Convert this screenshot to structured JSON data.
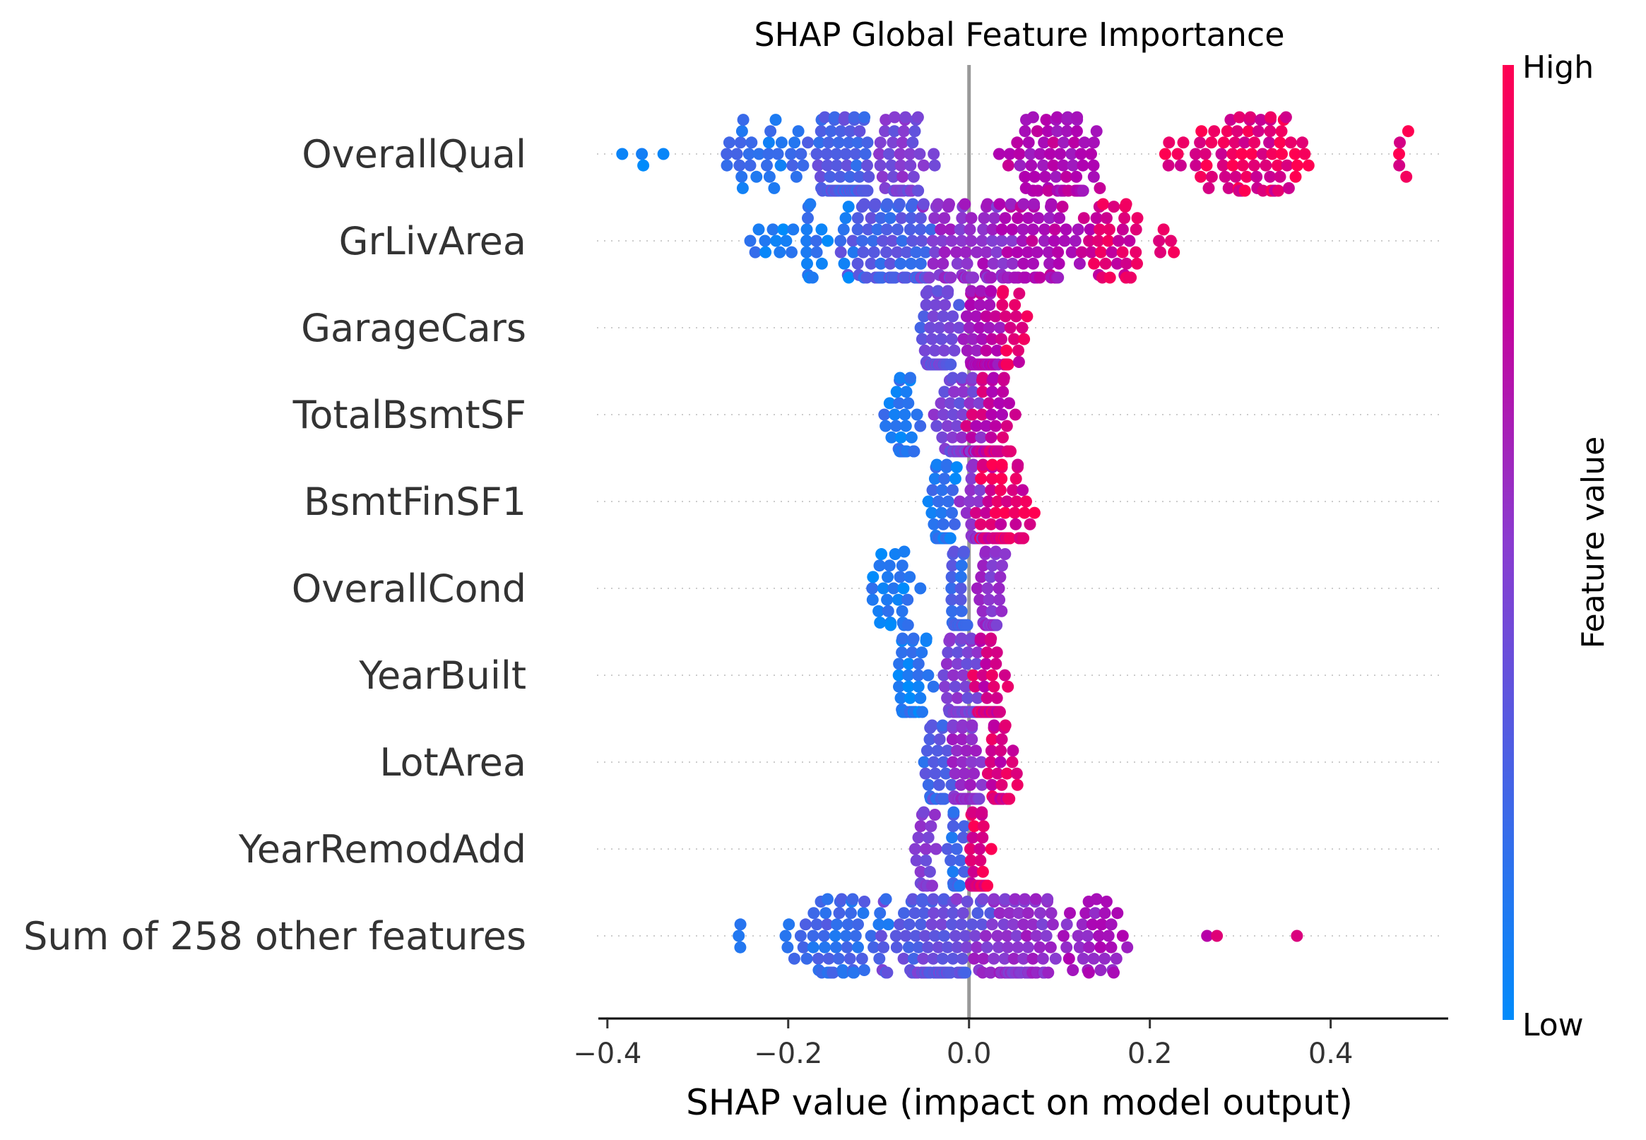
{
  "chart_data": {
    "type": "scatter",
    "subtype": "beeswarm",
    "title": "SHAP Global Feature Importance",
    "xlabel": "SHAP value (impact on model output)",
    "xlim": [
      -0.41,
      0.53
    ],
    "xticks": [
      -0.4,
      -0.2,
      0.0,
      0.2,
      0.4
    ],
    "xtick_labels": [
      "−0.4",
      "−0.2",
      "0.0",
      "0.2",
      "0.4"
    ],
    "zero_line": 0.0,
    "grid": false,
    "colorbar": {
      "label": "Feature value",
      "high_label": "High",
      "low_label": "Low",
      "low_color": "#008bfb",
      "high_color": "#ff0051",
      "mid_color": "#b000b0"
    },
    "features": [
      {
        "name": "OverallQual",
        "clusters": [
          {
            "center": -0.37,
            "spread": 0.02,
            "n": 4,
            "val": 0.02
          },
          {
            "center": -0.23,
            "spread": 0.045,
            "n": 32,
            "val": 0.15
          },
          {
            "center": -0.135,
            "spread": 0.028,
            "n": 95,
            "val": 0.28
          },
          {
            "center": -0.075,
            "spread": 0.025,
            "n": 55,
            "val": 0.45
          },
          {
            "center": 0.1,
            "spread": 0.045,
            "n": 70,
            "val": 0.72
          },
          {
            "center": 0.31,
            "spread": 0.06,
            "n": 80,
            "val": 0.92
          },
          {
            "center": 0.475,
            "spread": 0.012,
            "n": 5,
            "val": 0.97
          }
        ]
      },
      {
        "name": "GrLivArea",
        "clusters": [
          {
            "center": -0.17,
            "spread": 0.045,
            "n": 35,
            "val": 0.1
          },
          {
            "center": -0.085,
            "spread": 0.045,
            "n": 95,
            "val": 0.28
          },
          {
            "center": 0.0,
            "spread": 0.045,
            "n": 80,
            "val": 0.55
          },
          {
            "center": 0.07,
            "spread": 0.04,
            "n": 75,
            "val": 0.72
          },
          {
            "center": 0.16,
            "spread": 0.04,
            "n": 40,
            "val": 0.88
          },
          {
            "center": 0.22,
            "spread": 0.012,
            "n": 4,
            "val": 0.97
          }
        ]
      },
      {
        "name": "GarageCars",
        "clusters": [
          {
            "center": -0.035,
            "spread": 0.015,
            "n": 70,
            "val": 0.35
          },
          {
            "center": 0.015,
            "spread": 0.016,
            "n": 95,
            "val": 0.72
          },
          {
            "center": 0.045,
            "spread": 0.012,
            "n": 20,
            "val": 0.88
          }
        ]
      },
      {
        "name": "TotalBsmtSF",
        "clusters": [
          {
            "center": -0.075,
            "spread": 0.015,
            "n": 35,
            "val": 0.12
          },
          {
            "center": -0.01,
            "spread": 0.018,
            "n": 70,
            "val": 0.45
          },
          {
            "center": 0.025,
            "spread": 0.02,
            "n": 75,
            "val": 0.82
          }
        ]
      },
      {
        "name": "BsmtFinSF1",
        "clusters": [
          {
            "center": -0.03,
            "spread": 0.012,
            "n": 45,
            "val": 0.12
          },
          {
            "center": 0.005,
            "spread": 0.01,
            "n": 25,
            "val": 0.55
          },
          {
            "center": 0.04,
            "spread": 0.022,
            "n": 95,
            "val": 0.9
          }
        ]
      },
      {
        "name": "OverallCond",
        "clusters": [
          {
            "center": -0.085,
            "spread": 0.028,
            "n": 28,
            "val": 0.08
          },
          {
            "center": -0.01,
            "spread": 0.008,
            "n": 110,
            "val": 0.25
          },
          {
            "center": 0.025,
            "spread": 0.012,
            "n": 50,
            "val": 0.55
          }
        ]
      },
      {
        "name": "YearBuilt",
        "clusters": [
          {
            "center": -0.06,
            "spread": 0.018,
            "n": 40,
            "val": 0.1
          },
          {
            "center": -0.005,
            "spread": 0.018,
            "n": 60,
            "val": 0.45
          },
          {
            "center": 0.025,
            "spread": 0.015,
            "n": 70,
            "val": 0.85
          }
        ]
      },
      {
        "name": "LotArea",
        "clusters": [
          {
            "center": -0.035,
            "spread": 0.012,
            "n": 30,
            "val": 0.25
          },
          {
            "center": -0.003,
            "spread": 0.012,
            "n": 110,
            "val": 0.55
          },
          {
            "center": 0.035,
            "spread": 0.015,
            "n": 40,
            "val": 0.85
          }
        ]
      },
      {
        "name": "YearRemodAdd",
        "clusters": [
          {
            "center": -0.045,
            "spread": 0.01,
            "n": 20,
            "val": 0.45
          },
          {
            "center": -0.015,
            "spread": 0.006,
            "n": 40,
            "val": 0.2
          },
          {
            "center": 0.012,
            "spread": 0.008,
            "n": 85,
            "val": 0.9
          }
        ]
      },
      {
        "name": "Sum of 258 other features",
        "clusters": [
          {
            "center": -0.255,
            "spread": 0.005,
            "n": 3,
            "val": 0.05
          },
          {
            "center": -0.14,
            "spread": 0.05,
            "n": 70,
            "val": 0.2
          },
          {
            "center": -0.04,
            "spread": 0.04,
            "n": 140,
            "val": 0.35
          },
          {
            "center": 0.05,
            "spread": 0.04,
            "n": 110,
            "val": 0.55
          },
          {
            "center": 0.14,
            "spread": 0.03,
            "n": 35,
            "val": 0.65
          },
          {
            "center": 0.27,
            "spread": 0.015,
            "n": 2,
            "val": 0.8
          },
          {
            "center": 0.362,
            "spread": 0.001,
            "n": 1,
            "val": 0.97
          }
        ]
      }
    ]
  }
}
